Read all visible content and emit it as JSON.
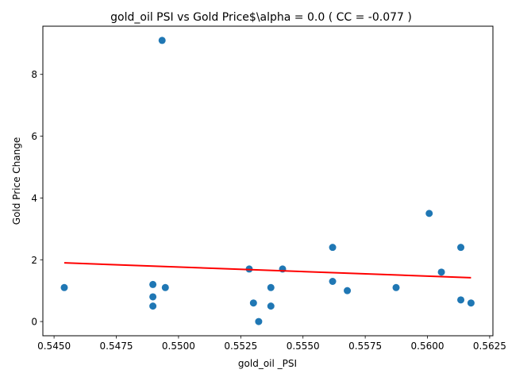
{
  "chart_data": {
    "type": "scatter",
    "title": "gold_oil  PSI vs Gold Price$\\alpha = 0.0 ( CC = -0.077 )",
    "xlabel": "gold_oil _PSI",
    "ylabel": "Gold Price Change",
    "xlim": [
      0.54455,
      0.56263
    ],
    "ylim": [
      -0.46,
      9.56
    ],
    "x_ticks": [
      0.545,
      0.5475,
      0.55,
      0.5525,
      0.555,
      0.5575,
      0.56,
      0.5625
    ],
    "x_tick_labels": [
      "0.5450",
      "0.5475",
      "0.5500",
      "0.5525",
      "0.5550",
      "0.5575",
      "0.5600",
      "0.5625"
    ],
    "y_ticks": [
      0,
      2,
      4,
      6,
      8
    ],
    "y_tick_labels": [
      "0",
      "2",
      "4",
      "6",
      "8"
    ],
    "grid": false,
    "points": [
      {
        "x": 0.54541,
        "y": 1.1
      },
      {
        "x": 0.54897,
        "y": 1.2
      },
      {
        "x": 0.54897,
        "y": 0.8
      },
      {
        "x": 0.54897,
        "y": 0.5
      },
      {
        "x": 0.54934,
        "y": 9.1
      },
      {
        "x": 0.54947,
        "y": 1.1
      },
      {
        "x": 0.55284,
        "y": 1.7
      },
      {
        "x": 0.55301,
        "y": 0.6
      },
      {
        "x": 0.55322,
        "y": 0.0
      },
      {
        "x": 0.55371,
        "y": 1.1
      },
      {
        "x": 0.55371,
        "y": 0.5
      },
      {
        "x": 0.55418,
        "y": 1.7
      },
      {
        "x": 0.55619,
        "y": 2.4
      },
      {
        "x": 0.55619,
        "y": 1.3
      },
      {
        "x": 0.55678,
        "y": 1.0
      },
      {
        "x": 0.55874,
        "y": 1.1
      },
      {
        "x": 0.56007,
        "y": 3.5
      },
      {
        "x": 0.56056,
        "y": 1.6
      },
      {
        "x": 0.56134,
        "y": 2.4
      },
      {
        "x": 0.56134,
        "y": 0.7
      },
      {
        "x": 0.56175,
        "y": 0.6
      }
    ],
    "fit_line": {
      "x": [
        0.54541,
        0.56175
      ],
      "y": [
        1.9,
        1.42
      ]
    },
    "colors": {
      "points": "#1f77b4",
      "fit_line": "#ff0000",
      "axes": "#000000"
    }
  }
}
